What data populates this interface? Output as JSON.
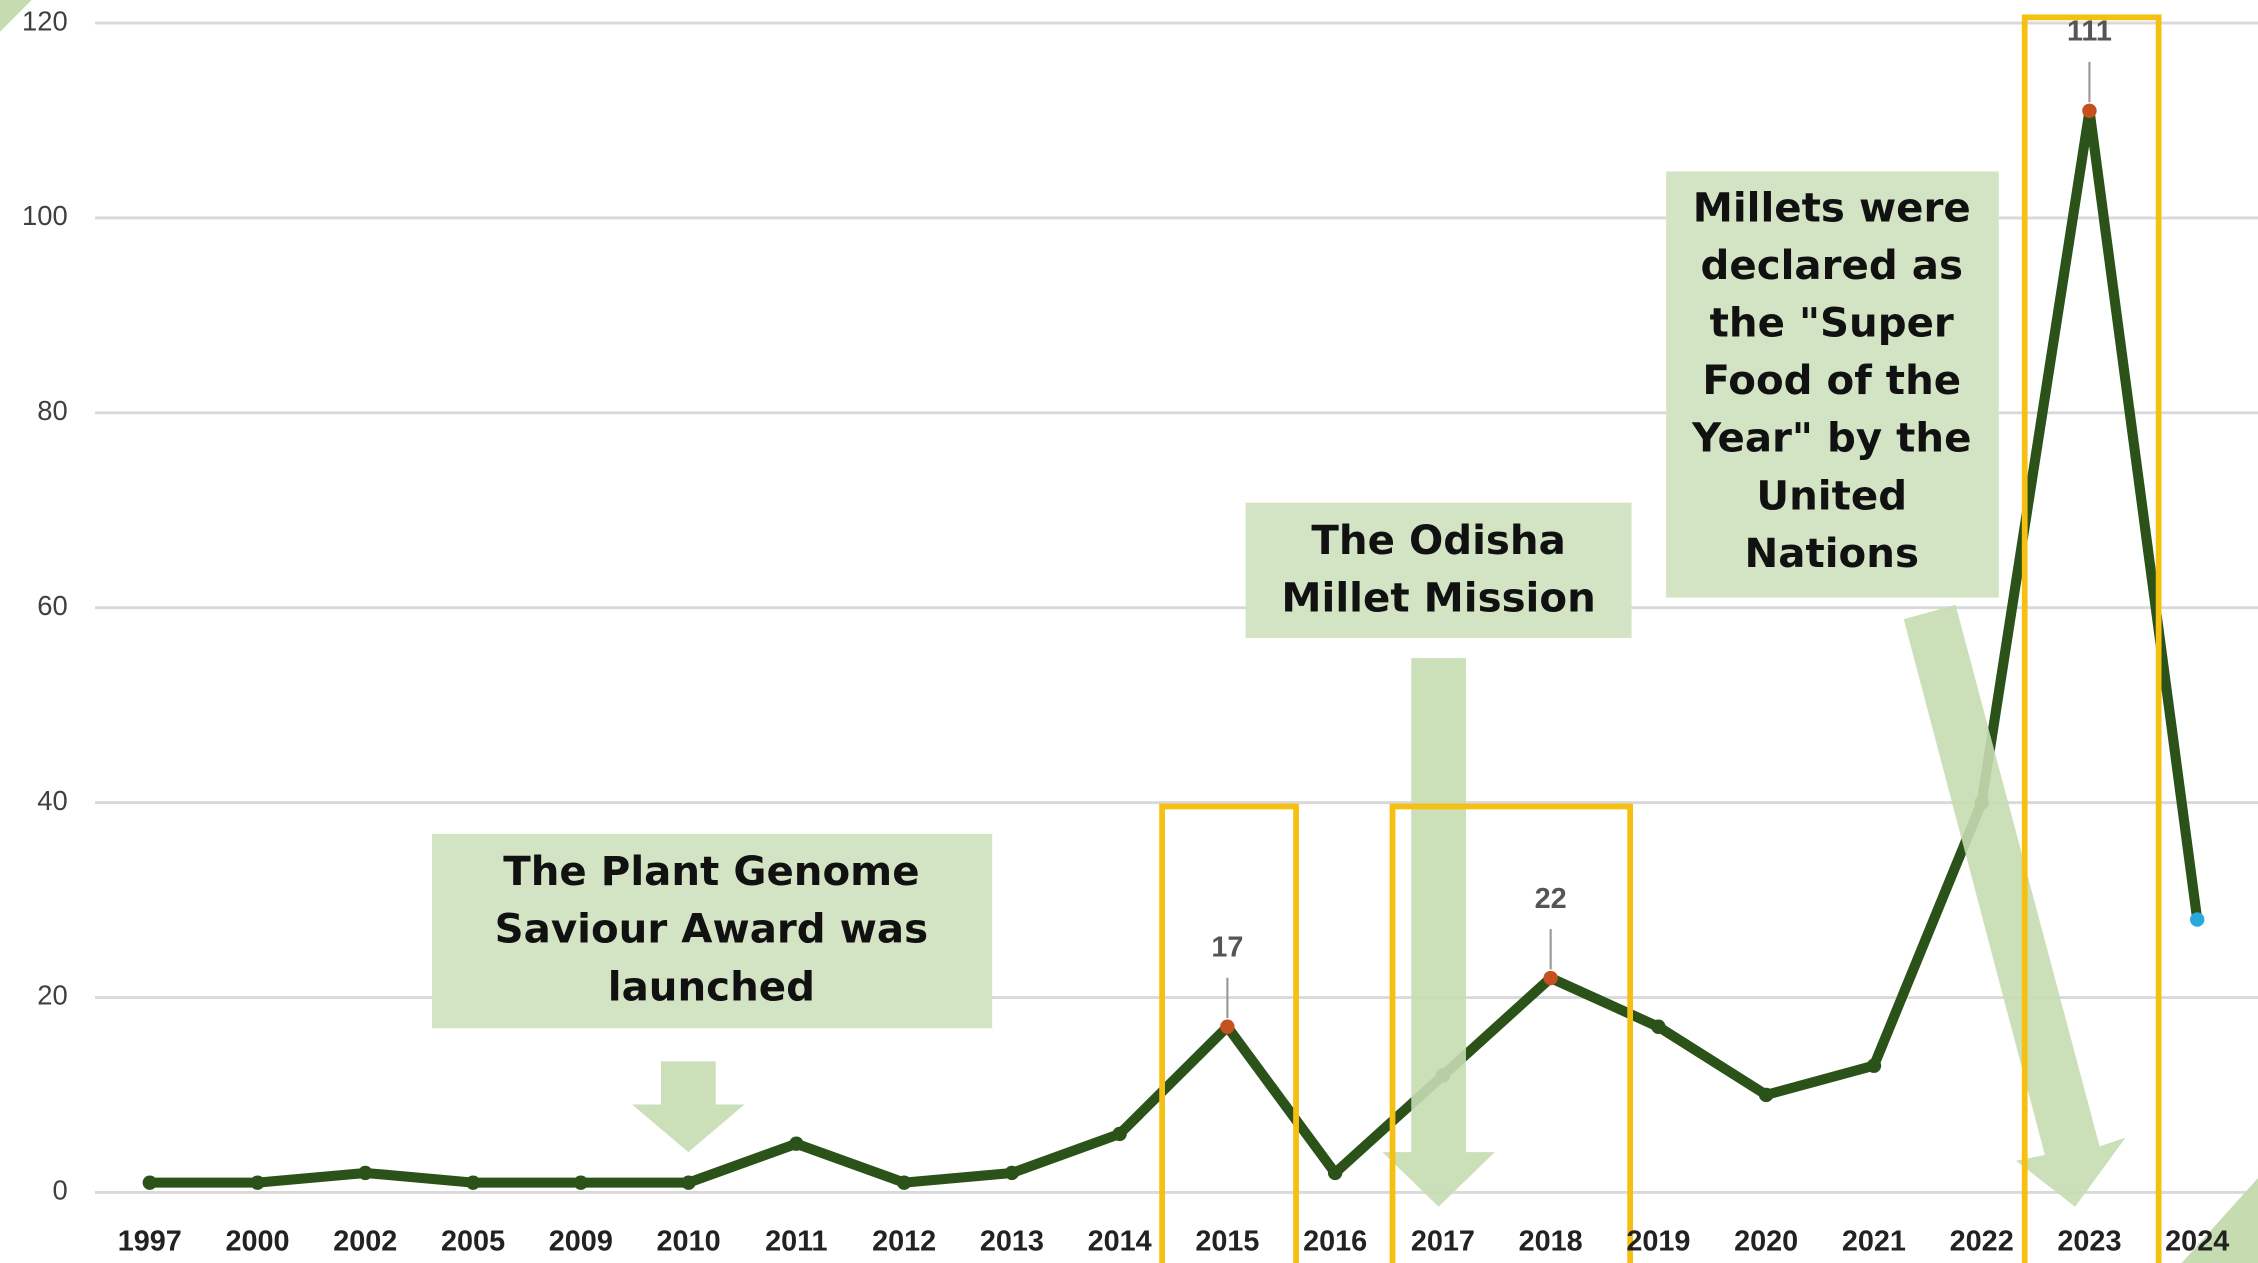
{
  "chart_data": {
    "type": "line",
    "categories": [
      "1997",
      "2000",
      "2002",
      "2005",
      "2009",
      "2010",
      "2011",
      "2012",
      "2013",
      "2014",
      "2015",
      "2016",
      "2017",
      "2018",
      "2019",
      "2020",
      "2021",
      "2022",
      "2023",
      "2024"
    ],
    "series": [
      {
        "color": "#2b5219",
        "values": [
          1,
          1,
          2,
          1,
          1,
          1,
          5,
          1,
          2,
          6,
          17,
          2,
          12,
          22,
          17,
          10,
          13,
          40,
          111,
          28
        ]
      }
    ],
    "value_labels": [
      null,
      null,
      null,
      null,
      null,
      null,
      null,
      null,
      null,
      null,
      "17",
      null,
      null,
      "22",
      null,
      null,
      null,
      null,
      "111",
      null
    ],
    "highlight_color": "#c4511f",
    "last_point_color": "#29a8e0",
    "ylim": [
      0,
      120
    ],
    "yticks": [
      0,
      20,
      40,
      60,
      80,
      100,
      120
    ],
    "grid": true,
    "annotations": [
      {
        "text": [
          "The Plant Genome",
          "Saviour Award was",
          "launched"
        ]
      },
      {
        "text": [
          "The Odisha",
          "Millet Mission"
        ]
      },
      {
        "text": [
          "Millets were",
          "declared as",
          "the \"Super",
          "Food of the",
          "Year\" by the",
          "United",
          "Nations"
        ]
      }
    ]
  }
}
